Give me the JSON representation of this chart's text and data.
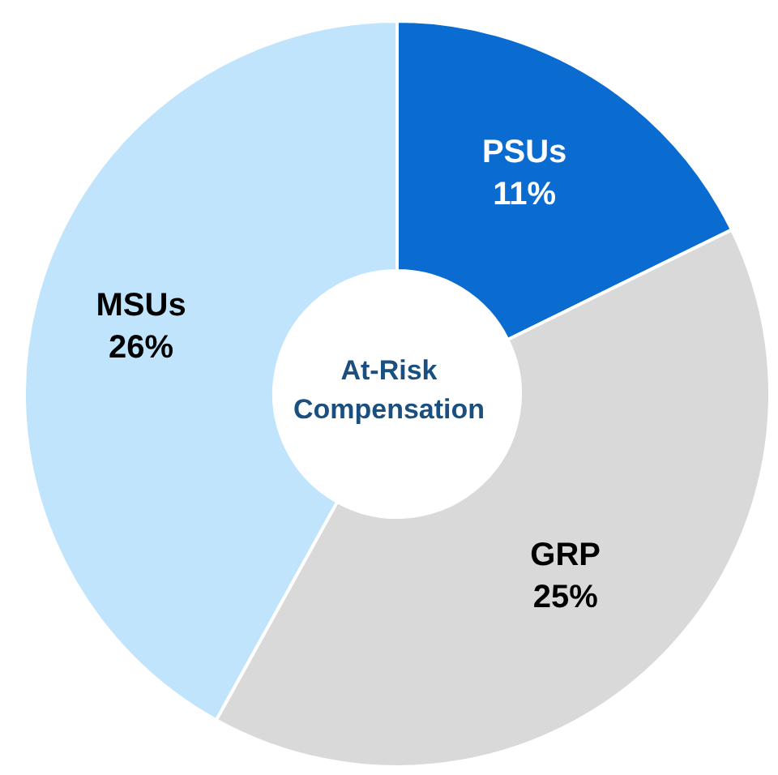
{
  "chart_data": {
    "type": "donut",
    "categories": [
      "PSUs",
      "GRP",
      "MSUs"
    ],
    "values": [
      11,
      25,
      26
    ],
    "colors": [
      "#0a6bd0",
      "#d9d9d9",
      "#bfe4fc"
    ],
    "value_labels": [
      "11%",
      "25%",
      "26%"
    ],
    "annotations": [
      "At-Risk Compensation"
    ]
  }
}
